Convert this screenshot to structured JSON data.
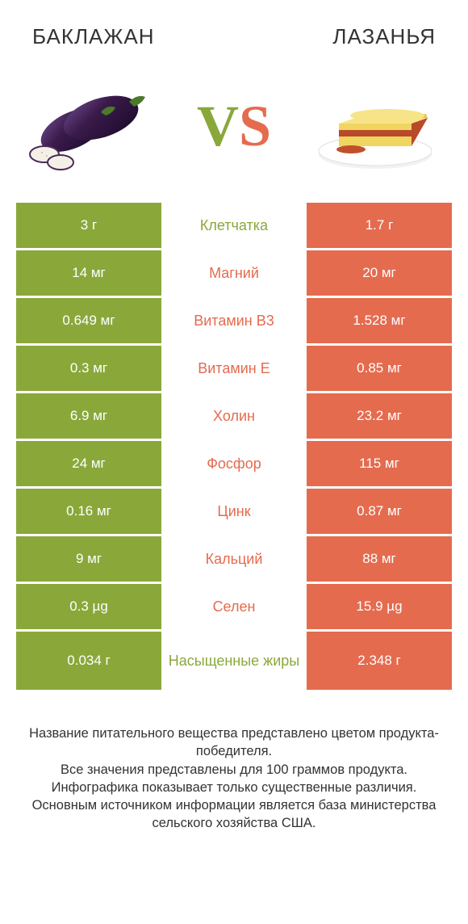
{
  "colors": {
    "left_bg": "#8aa83a",
    "right_bg": "#e56b4e",
    "mid_left": "#8aa83a",
    "mid_right": "#e56b4e",
    "text": "#333333",
    "white": "#ffffff"
  },
  "header": {
    "left_title": "БАКЛАЖАН",
    "right_title": "ЛАЗАНЬЯ"
  },
  "vs": {
    "v": "V",
    "s": "S"
  },
  "rows": [
    {
      "left": "3 г",
      "label": "Клетчатка",
      "right": "1.7 г",
      "winner": "left"
    },
    {
      "left": "14 мг",
      "label": "Магний",
      "right": "20 мг",
      "winner": "right"
    },
    {
      "left": "0.649 мг",
      "label": "Витамин B3",
      "right": "1.528 мг",
      "winner": "right"
    },
    {
      "left": "0.3 мг",
      "label": "Витамин E",
      "right": "0.85 мг",
      "winner": "right"
    },
    {
      "left": "6.9 мг",
      "label": "Холин",
      "right": "23.2 мг",
      "winner": "right"
    },
    {
      "left": "24 мг",
      "label": "Фосфор",
      "right": "115 мг",
      "winner": "right"
    },
    {
      "left": "0.16 мг",
      "label": "Цинк",
      "right": "0.87 мг",
      "winner": "right"
    },
    {
      "left": "9 мг",
      "label": "Кальций",
      "right": "88 мг",
      "winner": "right"
    },
    {
      "left": "0.3 µg",
      "label": "Селен",
      "right": "15.9 µg",
      "winner": "right"
    },
    {
      "left": "0.034 г",
      "label": "Насыщенные жиры",
      "right": "2.348 г",
      "winner": "left",
      "tall": true
    }
  ],
  "footer": {
    "line1": "Название питательного вещества представлено цветом продукта-победителя.",
    "line2": "Все значения представлены для 100 граммов продукта.",
    "line3": "Инфографика показывает только существенные различия.",
    "line4": "Основным источником информации является база министерства сельского хозяйства США."
  }
}
